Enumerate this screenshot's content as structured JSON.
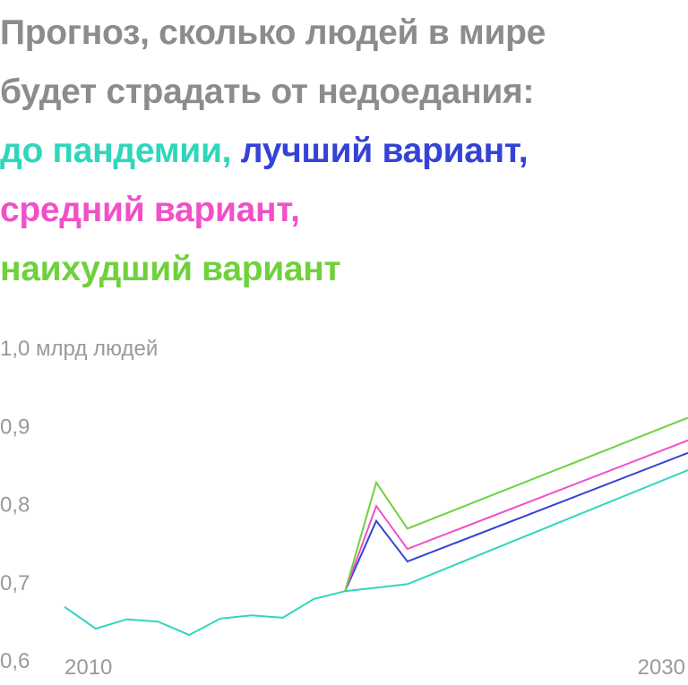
{
  "title": {
    "line1": "Прогноз, сколько людей в мире",
    "line2": "будет страдать от недоедания:",
    "pre": "до пандемии,",
    "best": "лучший вариант,",
    "middle": "средний вариант,",
    "worst": "наихудший вариант"
  },
  "colors": {
    "title": "#8c8c8c",
    "pre": "#2fd6bb",
    "best": "#3443d6",
    "middle": "#f050c8",
    "worst": "#6fd13b",
    "ticks": "#9a9a9a"
  },
  "chart_data": {
    "type": "line",
    "ylabel": "млрд людей",
    "ylim": [
      0.6,
      1.0
    ],
    "xlim": [
      2010,
      2030
    ],
    "y_ticks": [
      "0,6",
      "0,7",
      "0,8",
      "0,9",
      "1,0 млрд людей"
    ],
    "x_ticks": [
      "2010",
      "2030"
    ],
    "grid": false,
    "series": [
      {
        "name": "до пандемии",
        "color": "#2fd6bb",
        "points": [
          [
            2010,
            0.668
          ],
          [
            2011,
            0.64
          ],
          [
            2012,
            0.652
          ],
          [
            2013,
            0.649
          ],
          [
            2014,
            0.632
          ],
          [
            2015,
            0.653
          ],
          [
            2016,
            0.657
          ],
          [
            2017,
            0.654
          ],
          [
            2018,
            0.678
          ],
          [
            2019,
            0.688
          ],
          [
            2021,
            0.697
          ],
          [
            2030,
            0.843
          ]
        ]
      },
      {
        "name": "лучший вариант",
        "color": "#3443d6",
        "points": [
          [
            2019,
            0.688
          ],
          [
            2020,
            0.778
          ],
          [
            2021,
            0.726
          ],
          [
            2030,
            0.865
          ]
        ]
      },
      {
        "name": "средний вариант",
        "color": "#f050c8",
        "points": [
          [
            2019,
            0.688
          ],
          [
            2020,
            0.797
          ],
          [
            2021,
            0.742
          ],
          [
            2030,
            0.881
          ]
        ]
      },
      {
        "name": "наихудший вариант",
        "color": "#6fd13b",
        "points": [
          [
            2019,
            0.688
          ],
          [
            2020,
            0.827
          ],
          [
            2021,
            0.768
          ],
          [
            2030,
            0.91
          ]
        ]
      }
    ]
  }
}
